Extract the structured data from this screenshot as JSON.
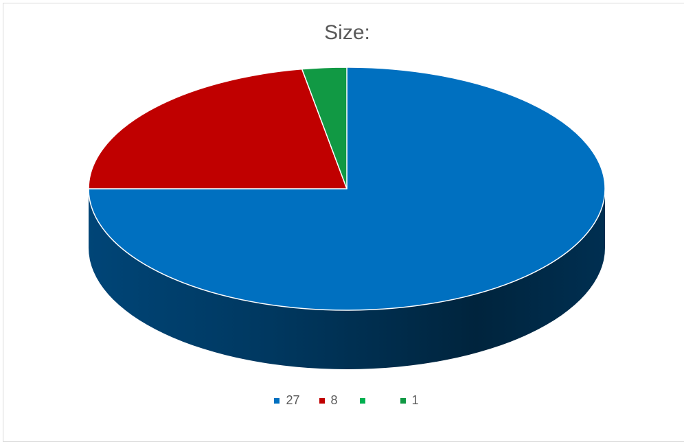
{
  "chart_data": {
    "type": "pie",
    "title": "Size:",
    "categories": [
      "27",
      "8",
      "",
      "1"
    ],
    "values": [
      27,
      8,
      0,
      1
    ],
    "colors": [
      "#0070C0",
      "#C00000",
      "#00B050",
      "#119944"
    ],
    "style": "3d",
    "legend_position": "bottom"
  }
}
